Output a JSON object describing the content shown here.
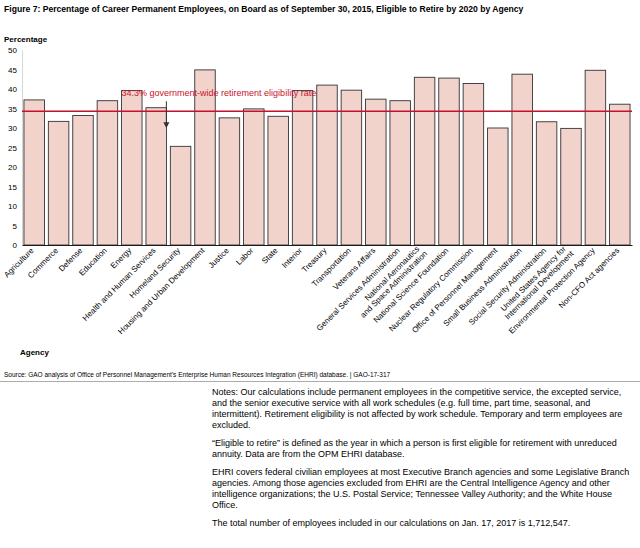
{
  "chart_data": {
    "type": "bar",
    "title": "Figure 7: Percentage of Career Permanent Employees, on Board as of September 30, 2015, Eligible to Retire by 2020 by Agency",
    "y_label": "Percentage",
    "x_label": "Agency",
    "categories": [
      "Agriculture",
      "Commerce",
      "Defense",
      "Education",
      "Energy",
      "Health and Human Services",
      "Homeland Security",
      "Housing and Urban Development",
      "Justice",
      "Labor",
      "State",
      "Interior",
      "Treasury",
      "Transportation",
      "Veterans Affairs",
      "General Services Administration",
      "National Aeronautics and Space Administration",
      "National Science Foundation",
      "Nuclear Regulatory Commission",
      "Office of Personnel Management",
      "Small Business Administration",
      "Social Security Administration",
      "United States Agency for International Development",
      "Environmental Protection Agency",
      "Non-CFO Act agencies"
    ],
    "values": [
      37.2,
      31.7,
      33.2,
      37.0,
      39.6,
      35.2,
      25.3,
      44.9,
      32.6,
      34.9,
      33.0,
      39.6,
      41.0,
      39.7,
      37.4,
      37.0,
      43.0,
      42.8,
      41.4,
      30.0,
      43.8,
      31.6,
      29.9,
      44.8,
      36.1
    ],
    "color": "#f2d3cb",
    "ylim": [
      0,
      50
    ],
    "yticks": [
      0,
      5,
      10,
      15,
      20,
      25,
      30,
      35,
      40,
      45,
      50
    ],
    "grid": false,
    "annotations": [
      {
        "text": "34.3% government-wide retirement eligibility rate",
        "y": 34.3
      }
    ],
    "source": "Source: GAO analysis of Office of Personnel Management's Enterprise Human Resources Integration (EHRI) database. | GAO-17-317",
    "notes": [
      "Notes: Our calculations include permanent employees in the competitive service, the excepted service, and the senior executive service with all work schedules (e.g. full time, part time, seasonal, and intermittent). Retirement eligibility is not affected by work schedule. Temporary and term employees are excluded.",
      "“Eligible to retire” is defined as the year in which a person is first eligible for retirement with unreduced annuity. Data are from the OPM EHRI database.",
      "EHRI covers federal civilian employees at most Executive Branch agencies and some Legislative Branch agencies. Among those agencies excluded from EHRI are the Central Intelligence Agency and other intelligence organizations; the U.S. Postal Service; Tennessee Valley Authority; and the White House Office.",
      "The total number of employees included in our calculations on Jan. 17, 2017 is 1,712,547."
    ]
  }
}
